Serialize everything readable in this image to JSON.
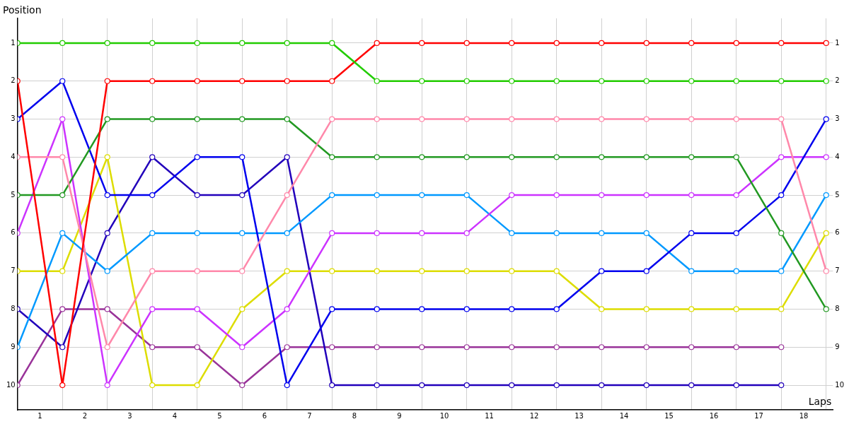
{
  "chart_data": {
    "type": "line",
    "xlabel": "Laps",
    "ylabel": "Position",
    "x": [
      0,
      1,
      2,
      3,
      4,
      5,
      6,
      7,
      8,
      9,
      10,
      11,
      12,
      13,
      14,
      15,
      16,
      17,
      18
    ],
    "xlim": [
      0,
      18.15
    ],
    "xticks": [
      {
        "value": 0,
        "label": null
      },
      {
        "value": 0.5,
        "label": "1"
      },
      {
        "value": 1,
        "label": null
      },
      {
        "value": 1.5,
        "label": "2"
      },
      {
        "value": 2,
        "label": null
      },
      {
        "value": 2.5,
        "label": "3"
      },
      {
        "value": 3,
        "label": null
      },
      {
        "value": 3.5,
        "label": "4"
      },
      {
        "value": 4,
        "label": null
      },
      {
        "value": 4.5,
        "label": "5"
      },
      {
        "value": 5,
        "label": null
      },
      {
        "value": 5.5,
        "label": "6"
      },
      {
        "value": 6,
        "label": null
      },
      {
        "value": 6.5,
        "label": "7"
      },
      {
        "value": 7,
        "label": null
      },
      {
        "value": 7.5,
        "label": "8"
      },
      {
        "value": 8,
        "label": null
      },
      {
        "value": 8.5,
        "label": "9"
      },
      {
        "value": 9,
        "label": null
      },
      {
        "value": 9.5,
        "label": "10"
      },
      {
        "value": 10,
        "label": null
      },
      {
        "value": 10.5,
        "label": "11"
      },
      {
        "value": 11,
        "label": null
      },
      {
        "value": 11.5,
        "label": "12"
      },
      {
        "value": 12,
        "label": null
      },
      {
        "value": 12.5,
        "label": "13"
      },
      {
        "value": 13,
        "label": null
      },
      {
        "value": 13.5,
        "label": "14"
      },
      {
        "value": 14,
        "label": null
      },
      {
        "value": 14.5,
        "label": "15"
      },
      {
        "value": 15,
        "label": null
      },
      {
        "value": 15.5,
        "label": "16"
      },
      {
        "value": 16,
        "label": null
      },
      {
        "value": 16.5,
        "label": "17"
      },
      {
        "value": 17,
        "label": null
      },
      {
        "value": 17.5,
        "label": "18"
      },
      {
        "value": 18,
        "label": null
      }
    ],
    "ylim": [
      10.65,
      0.35
    ],
    "yticks": [
      1,
      2,
      3,
      4,
      5,
      6,
      7,
      8,
      9,
      10
    ],
    "y2lim": [
      10.65,
      0.35
    ],
    "y2ticks": [
      1,
      2,
      3,
      4,
      5,
      6,
      7,
      8,
      9,
      10
    ],
    "grid": true,
    "legend": false,
    "marker": "circle",
    "line_style": "solid",
    "series": [
      {
        "color": "#22cc00",
        "values": [
          1,
          1,
          1,
          1,
          1,
          1,
          1,
          1,
          2,
          2,
          2,
          2,
          2,
          2,
          2,
          2,
          2,
          2,
          2
        ]
      },
      {
        "color": "#ff0000",
        "values": [
          2,
          10,
          2,
          2,
          2,
          2,
          2,
          2,
          1,
          1,
          1,
          1,
          1,
          1,
          1,
          1,
          1,
          1,
          1
        ]
      },
      {
        "color": "#ff88aa",
        "values": [
          4,
          4,
          9,
          7,
          7,
          7,
          5,
          3,
          3,
          3,
          3,
          3,
          3,
          3,
          3,
          3,
          3,
          3,
          7
        ]
      },
      {
        "color": "#229922",
        "values": [
          5,
          5,
          3,
          3,
          3,
          3,
          3,
          4,
          4,
          4,
          4,
          4,
          4,
          4,
          4,
          4,
          4,
          6,
          8
        ]
      },
      {
        "color": "#0000ee",
        "values": [
          3,
          2,
          5,
          5,
          4,
          4,
          10,
          8,
          8,
          8,
          8,
          8,
          8,
          7,
          7,
          6,
          6,
          5,
          3
        ]
      },
      {
        "color": "#cc33ff",
        "values": [
          6,
          3,
          10,
          8,
          8,
          9,
          8,
          6,
          6,
          6,
          6,
          5,
          5,
          5,
          5,
          5,
          5,
          4,
          4
        ]
      },
      {
        "color": "#0099ff",
        "values": [
          9,
          6,
          7,
          6,
          6,
          6,
          6,
          5,
          5,
          5,
          5,
          6,
          6,
          6,
          6,
          7,
          7,
          7,
          5
        ]
      },
      {
        "color": "#dddd00",
        "values": [
          7,
          7,
          4,
          10,
          10,
          8,
          7,
          7,
          7,
          7,
          7,
          7,
          7,
          8,
          8,
          8,
          8,
          8,
          6
        ]
      },
      {
        "color": "#2200bb",
        "values": [
          8,
          9,
          6,
          4,
          5,
          5,
          4,
          10,
          10,
          10,
          10,
          10,
          10,
          10,
          10,
          10,
          10,
          10,
          null
        ]
      },
      {
        "color": "#993399",
        "values": [
          10,
          8,
          8,
          9,
          9,
          10,
          9,
          9,
          9,
          9,
          9,
          9,
          9,
          9,
          9,
          9,
          9,
          9,
          null
        ]
      }
    ]
  }
}
